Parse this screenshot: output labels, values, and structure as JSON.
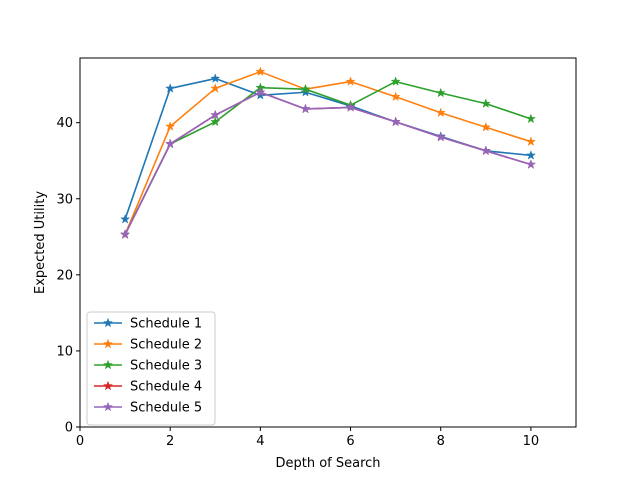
{
  "chart_data": {
    "type": "line",
    "title": "",
    "xlabel": "Depth of Search",
    "ylabel": "Expected Utility",
    "xlim": [
      0,
      11
    ],
    "ylim": [
      0,
      48.5
    ],
    "x_ticks": [
      0,
      2,
      4,
      6,
      8,
      10
    ],
    "y_ticks": [
      0,
      10,
      20,
      30,
      40
    ],
    "grid": false,
    "legend_position": "lower-left",
    "marker": "star",
    "x": [
      1,
      2,
      3,
      4,
      5,
      6,
      7,
      8,
      9,
      10
    ],
    "series": [
      {
        "name": "Schedule 1",
        "color": "#1f77b4",
        "values": [
          27.3,
          44.5,
          45.8,
          43.6,
          44.0,
          42.2,
          40.1,
          38.2,
          36.3,
          35.7
        ]
      },
      {
        "name": "Schedule 2",
        "color": "#ff7f0e",
        "values": [
          25.3,
          39.5,
          44.5,
          46.7,
          44.4,
          45.4,
          43.4,
          41.3,
          39.4,
          37.5
        ]
      },
      {
        "name": "Schedule 3",
        "color": "#2ca02c",
        "values": [
          25.3,
          37.2,
          40.1,
          44.6,
          44.4,
          42.3,
          45.4,
          43.9,
          42.5,
          40.5
        ]
      },
      {
        "name": "Schedule 4",
        "color": "#d62728",
        "values": [
          25.3,
          37.2,
          41.0,
          44.0,
          41.8,
          42.0,
          40.1,
          38.1,
          36.3,
          34.5
        ]
      },
      {
        "name": "Schedule 5",
        "color": "#9467bd",
        "values": [
          25.3,
          37.2,
          41.0,
          44.0,
          41.8,
          42.0,
          40.1,
          38.1,
          36.3,
          34.5
        ]
      }
    ]
  }
}
